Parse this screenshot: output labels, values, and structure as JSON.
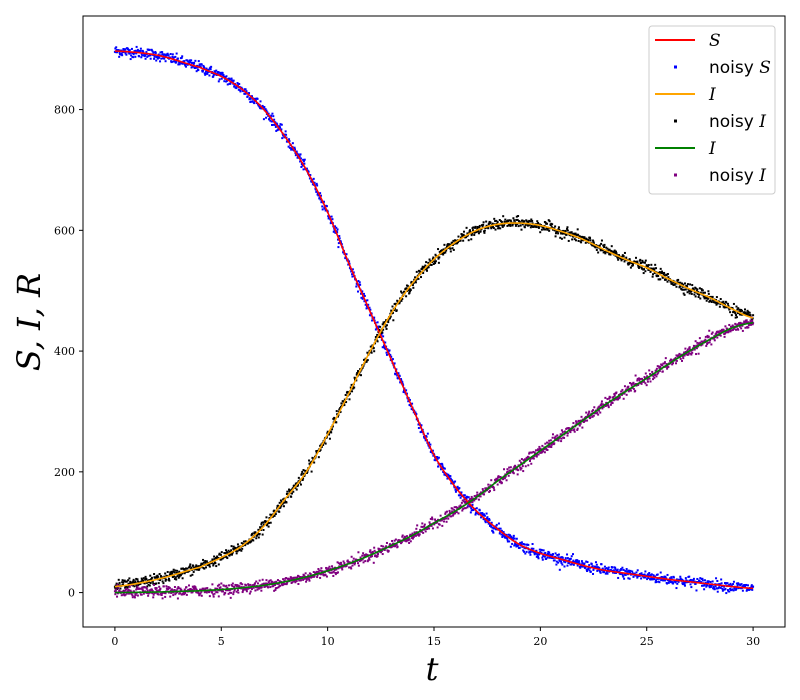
{
  "chart_data": {
    "type": "line",
    "xlabel": "t",
    "ylabel": "S, I, R",
    "xlim": [
      -1.5,
      31.5
    ],
    "ylim": [
      -57,
      955
    ],
    "xticks": [
      0,
      5,
      10,
      15,
      20,
      25,
      30
    ],
    "yticks": [
      0,
      200,
      400,
      600,
      800
    ],
    "grid": false,
    "legend_position": "top-right",
    "series": [
      {
        "name": "S",
        "legend_prefix": "",
        "kind": "line",
        "color": "#ff0000",
        "x": [
          0,
          2,
          4,
          5,
          6,
          7,
          8,
          9,
          10,
          11,
          12,
          13,
          14,
          15,
          16,
          17,
          18,
          19,
          20,
          21,
          22,
          23,
          24,
          25,
          26,
          27,
          28,
          29,
          30
        ],
        "y": [
          897,
          890,
          870,
          855,
          833,
          800,
          755,
          700,
          630,
          545,
          465,
          385,
          305,
          228,
          175,
          135,
          105,
          80,
          65,
          55,
          45,
          37,
          32,
          27,
          22,
          18,
          14,
          10,
          7
        ]
      },
      {
        "name": "S",
        "legend_prefix": "noisy ",
        "kind": "scatter",
        "color": "#0000ff",
        "x": [
          0,
          2,
          4,
          5,
          6,
          7,
          8,
          9,
          10,
          11,
          12,
          13,
          14,
          15,
          16,
          17,
          18,
          19,
          20,
          21,
          22,
          23,
          24,
          25,
          26,
          27,
          28,
          29,
          30
        ],
        "y": [
          897,
          890,
          870,
          855,
          833,
          800,
          755,
          700,
          630,
          545,
          465,
          385,
          305,
          228,
          175,
          135,
          105,
          80,
          65,
          55,
          45,
          37,
          32,
          27,
          22,
          18,
          14,
          10,
          7
        ]
      },
      {
        "name": "I",
        "legend_prefix": "",
        "kind": "line",
        "color": "#ffa500",
        "x": [
          0,
          2,
          4,
          5,
          6,
          7,
          8,
          9,
          10,
          11,
          12,
          13,
          14,
          15,
          16,
          17,
          18,
          19,
          20,
          21,
          22,
          23,
          24,
          25,
          26,
          27,
          28,
          29,
          30
        ],
        "y": [
          10,
          22,
          42,
          58,
          78,
          110,
          155,
          200,
          262,
          330,
          400,
          463,
          513,
          552,
          580,
          600,
          610,
          612,
          608,
          598,
          585,
          568,
          552,
          538,
          520,
          503,
          488,
          470,
          455
        ]
      },
      {
        "name": "I",
        "legend_prefix": "noisy ",
        "kind": "scatter",
        "color": "#000000",
        "x": [
          0,
          2,
          4,
          5,
          6,
          7,
          8,
          9,
          10,
          11,
          12,
          13,
          14,
          15,
          16,
          17,
          18,
          19,
          20,
          21,
          22,
          23,
          24,
          25,
          26,
          27,
          28,
          29,
          30
        ],
        "y": [
          10,
          22,
          42,
          58,
          78,
          110,
          155,
          200,
          262,
          330,
          400,
          463,
          513,
          552,
          580,
          600,
          610,
          612,
          608,
          598,
          585,
          568,
          552,
          538,
          520,
          503,
          488,
          470,
          455
        ]
      },
      {
        "name": "I",
        "legend_prefix": "",
        "kind": "line",
        "color": "#008000",
        "x": [
          0,
          2,
          4,
          5,
          6,
          7,
          8,
          9,
          10,
          11,
          12,
          13,
          14,
          15,
          16,
          17,
          18,
          19,
          20,
          21,
          22,
          23,
          24,
          25,
          26,
          27,
          28,
          29,
          30
        ],
        "y": [
          0,
          1,
          3,
          5,
          8,
          12,
          18,
          26,
          36,
          48,
          62,
          78,
          95,
          115,
          135,
          158,
          185,
          210,
          235,
          260,
          285,
          310,
          333,
          355,
          378,
          400,
          420,
          438,
          447
        ]
      },
      {
        "name": "I",
        "legend_prefix": "noisy ",
        "kind": "scatter",
        "color": "#800080",
        "x": [
          0,
          2,
          4,
          5,
          6,
          7,
          8,
          9,
          10,
          11,
          12,
          13,
          14,
          15,
          16,
          17,
          18,
          19,
          20,
          21,
          22,
          23,
          24,
          25,
          26,
          27,
          28,
          29,
          30
        ],
        "y": [
          0,
          1,
          3,
          5,
          8,
          12,
          18,
          26,
          36,
          48,
          62,
          78,
          95,
          115,
          135,
          158,
          185,
          210,
          235,
          260,
          285,
          310,
          333,
          355,
          378,
          400,
          420,
          438,
          447
        ]
      }
    ]
  }
}
